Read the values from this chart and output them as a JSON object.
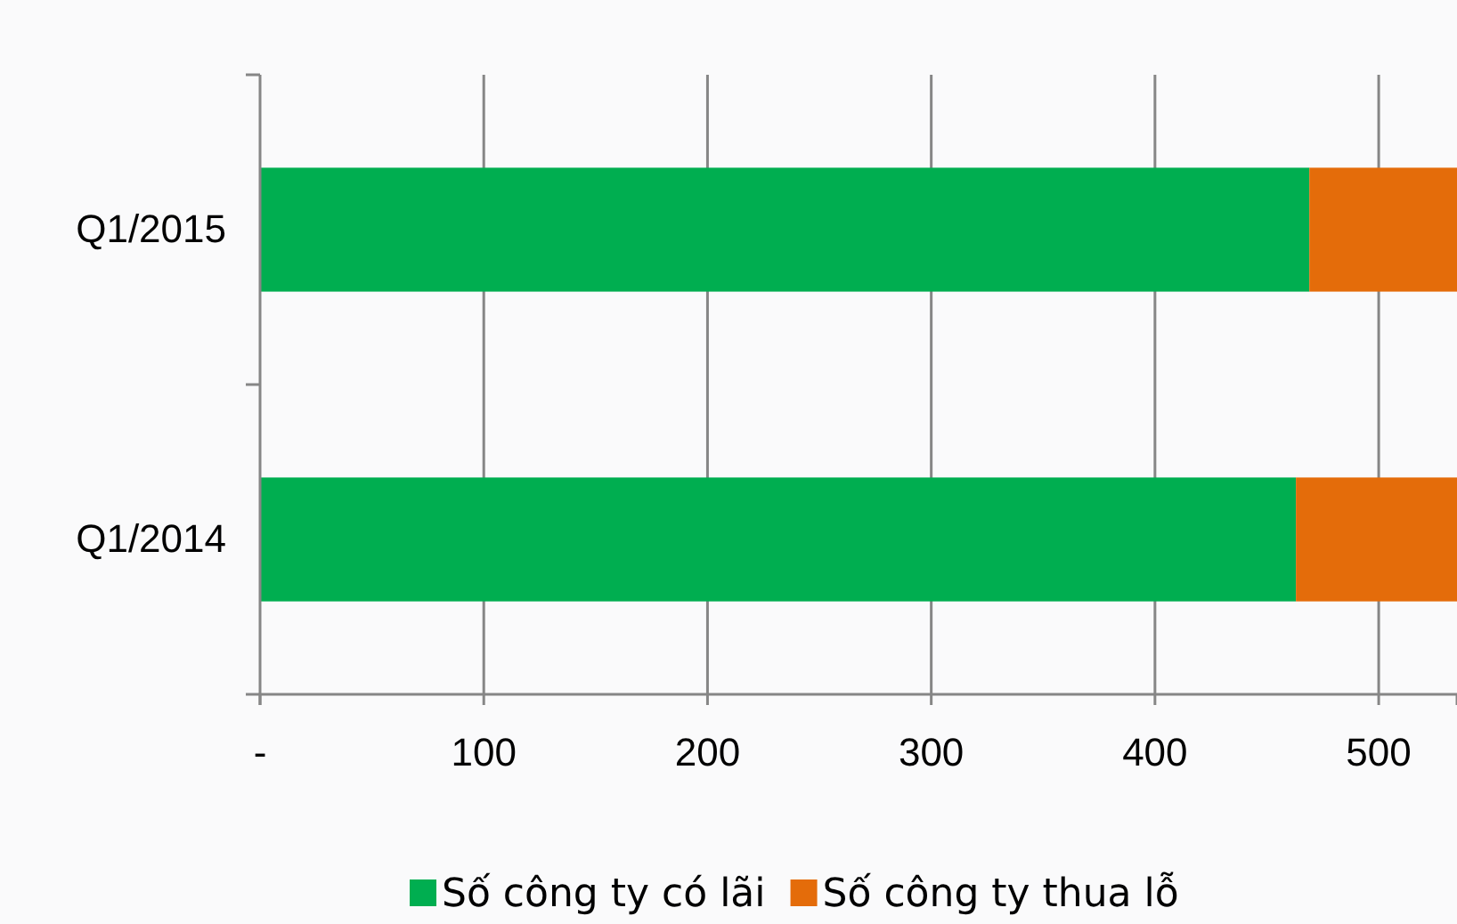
{
  "chart_data": {
    "type": "bar",
    "orientation": "horizontal",
    "stacked": true,
    "categories": [
      "Q1/2015",
      "Q1/2014"
    ],
    "series": [
      {
        "name": "Số công ty có lãi",
        "color": "#00ae50",
        "values": [
          469,
          463
        ]
      },
      {
        "name": "Số công ty thua lỗ",
        "color": "#e46c0a",
        "values": [
          66,
          72
        ]
      }
    ],
    "xlim": [
      0,
      535
    ],
    "xticks": [
      {
        "value": 0,
        "label": "-"
      },
      100,
      200,
      300,
      400,
      500
    ],
    "grid": "x",
    "legend": "bottom"
  }
}
